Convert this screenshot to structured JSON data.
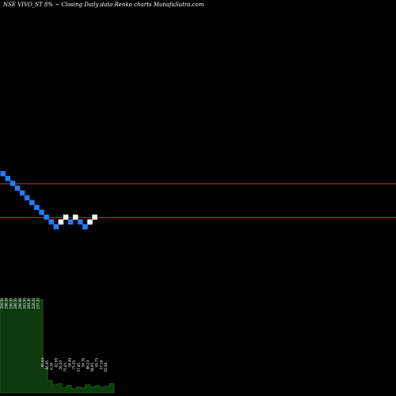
{
  "title": "NSE VIVO_ST 8% ~  Closing Daily data  Renko  charts MunafaSutra.com",
  "colors": {
    "background": "#000000",
    "up_brick": "#ffffff",
    "down_brick": "#1f7fff",
    "reference_line": "#b34a1a",
    "volume_fill": "#0e3a0e",
    "volume_edge": "#1f8a1f"
  },
  "chart_data": {
    "type": "renko",
    "bricks": [
      {
        "direction": "down",
        "level": 0
      },
      {
        "direction": "down",
        "level": 1
      },
      {
        "direction": "down",
        "level": 2
      },
      {
        "direction": "down",
        "level": 3
      },
      {
        "direction": "down",
        "level": 4
      },
      {
        "direction": "down",
        "level": 5
      },
      {
        "direction": "down",
        "level": 6
      },
      {
        "direction": "down",
        "level": 7
      },
      {
        "direction": "down",
        "level": 8
      },
      {
        "direction": "down",
        "level": 9
      },
      {
        "direction": "down",
        "level": 10
      },
      {
        "direction": "down",
        "level": 11
      },
      {
        "direction": "up",
        "level": 10
      },
      {
        "direction": "up",
        "level": 9
      },
      {
        "direction": "down",
        "level": 10
      },
      {
        "direction": "up",
        "level": 9
      },
      {
        "direction": "down",
        "level": 10
      },
      {
        "direction": "down",
        "level": 11
      },
      {
        "direction": "up",
        "level": 10
      },
      {
        "direction": "up",
        "level": 9
      }
    ],
    "reference_levels": [
      2.3,
      9.3
    ],
    "volume_labels": [
      "359.50",
      "298.36",
      "290.35",
      "286.50",
      "290.96",
      "261.50",
      "264.30",
      "228.30",
      "237.20",
      "85.64",
      "66.95",
      "6.36",
      "62.09",
      "56.00",
      "75.05",
      "54.49",
      "75.55",
      "57.85",
      "54.76",
      "86.24",
      "58.05",
      "69.75",
      "57.18",
      "65.08"
    ],
    "volume": [
      230,
      230,
      230,
      230,
      230,
      230,
      230,
      230,
      230,
      60,
      30,
      20,
      22,
      12,
      18,
      10,
      14,
      12,
      20,
      14,
      18,
      14,
      16,
      22
    ]
  }
}
